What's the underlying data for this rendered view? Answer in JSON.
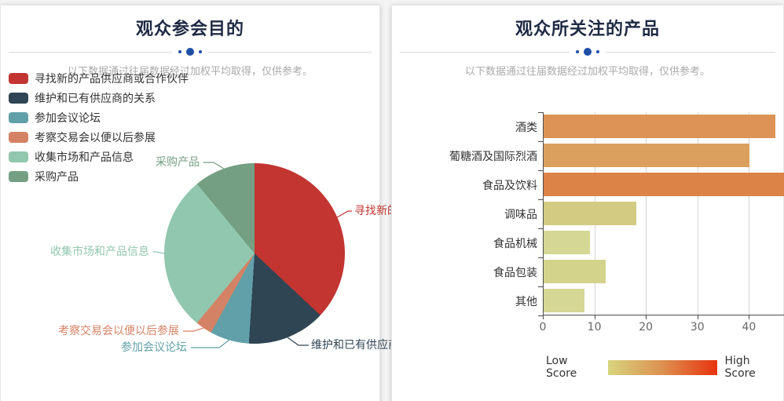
{
  "panels": {
    "left": {
      "title": "观众参会目的",
      "subtitle": "以下数据通过往届数据经过加权平均取得，仅供参考。"
    },
    "right": {
      "title": "观众所关注的产品",
      "subtitle": "以下数据通过往届数据经过加权平均取得，仅供参考。",
      "visualmap": {
        "low_label": "Low Score",
        "high_label": "High Score",
        "gradient_colors": [
          "#d7d57f",
          "#dd9050",
          "#e8330e"
        ]
      }
    }
  },
  "theme": {
    "divider_dot_color": "#1d4fa5",
    "divider_line_color": "#dcdcdc",
    "title_color": "#1f2a44",
    "subtitle_color": "#aaaaaa"
  },
  "chart_data": [
    {
      "type": "pie",
      "panel": "left",
      "title": "观众参会目的",
      "legend_position": "top-left",
      "series": [
        {
          "name": "寻找新的产品供应商或合作伙伴",
          "value": 37,
          "color": "#c23531"
        },
        {
          "name": "维护和已有供应商的关系",
          "value": 14,
          "color": "#2f4554"
        },
        {
          "name": "参加会议论坛",
          "value": 7,
          "color": "#61a0a8"
        },
        {
          "name": "考察交易会以便以后参展",
          "value": 3,
          "color": "#d48265"
        },
        {
          "name": "收集市场和产品信息",
          "value": 28,
          "color": "#91c7ae"
        },
        {
          "name": "采购产品",
          "value": 11,
          "color": "#749f83"
        }
      ]
    },
    {
      "type": "bar",
      "panel": "right",
      "title": "观众所关注的产品",
      "orientation": "horizontal",
      "categories": [
        "酒类",
        "葡糖酒及国际烈酒",
        "食品及饮料",
        "调味品",
        "食品机械",
        "食品包装",
        "其他"
      ],
      "values": [
        45,
        40,
        47,
        18,
        9,
        12,
        8
      ],
      "bar_colors": [
        "#dd9355",
        "#db9f5e",
        "#dc8348",
        "#d2cb81",
        "#d5d794",
        "#d4d38c",
        "#d5d794"
      ],
      "x_ticks": [
        0,
        10,
        20,
        30,
        40
      ],
      "xlim": [
        0,
        47
      ],
      "grid": true,
      "score_legend": {
        "low": "Low Score",
        "high": "High Score"
      }
    }
  ]
}
